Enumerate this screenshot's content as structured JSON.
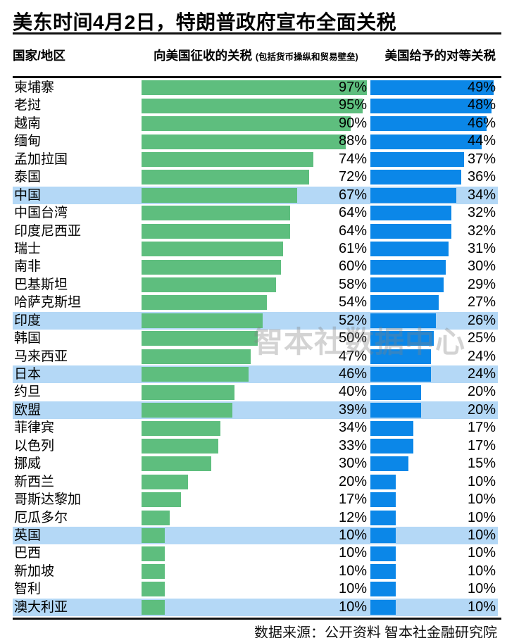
{
  "title": "美东时间4月2日，特朗普政府宣布全面关税",
  "columns": {
    "country": "国家/地区",
    "charged": "向美国征收的关税",
    "charged_note": "(包括货币操纵和贸易壁垒)",
    "reciprocal": "美国给予的对等关税"
  },
  "watermark": "智本社数据中心",
  "footer": "数据来源：公开资料 智本社金融研究院",
  "colors": {
    "green": "#5EBE7E",
    "blue": "#0B87E8",
    "highlight": "#B4D8F6"
  },
  "chart_data": {
    "type": "bar",
    "orientation": "horizontal",
    "title": "美东时间4月2日，特朗普政府宣布全面关税",
    "value_suffix": "%",
    "categories": [
      "柬埔寨",
      "老挝",
      "越南",
      "缅甸",
      "孟加拉国",
      "泰国",
      "中国",
      "中国台湾",
      "印度尼西亚",
      "瑞士",
      "南非",
      "巴基斯坦",
      "哈萨克斯坦",
      "印度",
      "韩国",
      "马来西亚",
      "日本",
      "约旦",
      "欧盟",
      "菲律宾",
      "以色列",
      "挪威",
      "新西兰",
      "哥斯达黎加",
      "厄瓜多尔",
      "英国",
      "巴西",
      "新加坡",
      "智利",
      "澳大利亚"
    ],
    "series": [
      {
        "name": "向美国征收的关税 (包括货币操纵和贸易壁垒)",
        "color": "#5EBE7E",
        "values": [
          97,
          95,
          90,
          88,
          74,
          72,
          67,
          64,
          64,
          61,
          60,
          58,
          54,
          52,
          50,
          47,
          46,
          40,
          39,
          34,
          33,
          30,
          20,
          17,
          12,
          10,
          10,
          10,
          10,
          10
        ]
      },
      {
        "name": "美国给予的对等关税",
        "color": "#0B87E8",
        "values": [
          49,
          48,
          46,
          44,
          37,
          36,
          34,
          32,
          32,
          31,
          30,
          29,
          27,
          26,
          25,
          24,
          24,
          20,
          20,
          17,
          17,
          15,
          10,
          10,
          10,
          10,
          10,
          10,
          10,
          10
        ]
      }
    ],
    "highlighted_categories": [
      "中国",
      "印度",
      "日本",
      "欧盟",
      "英国",
      "澳大利亚"
    ],
    "xlim": [
      0,
      100
    ],
    "grid": false,
    "legend": false
  }
}
